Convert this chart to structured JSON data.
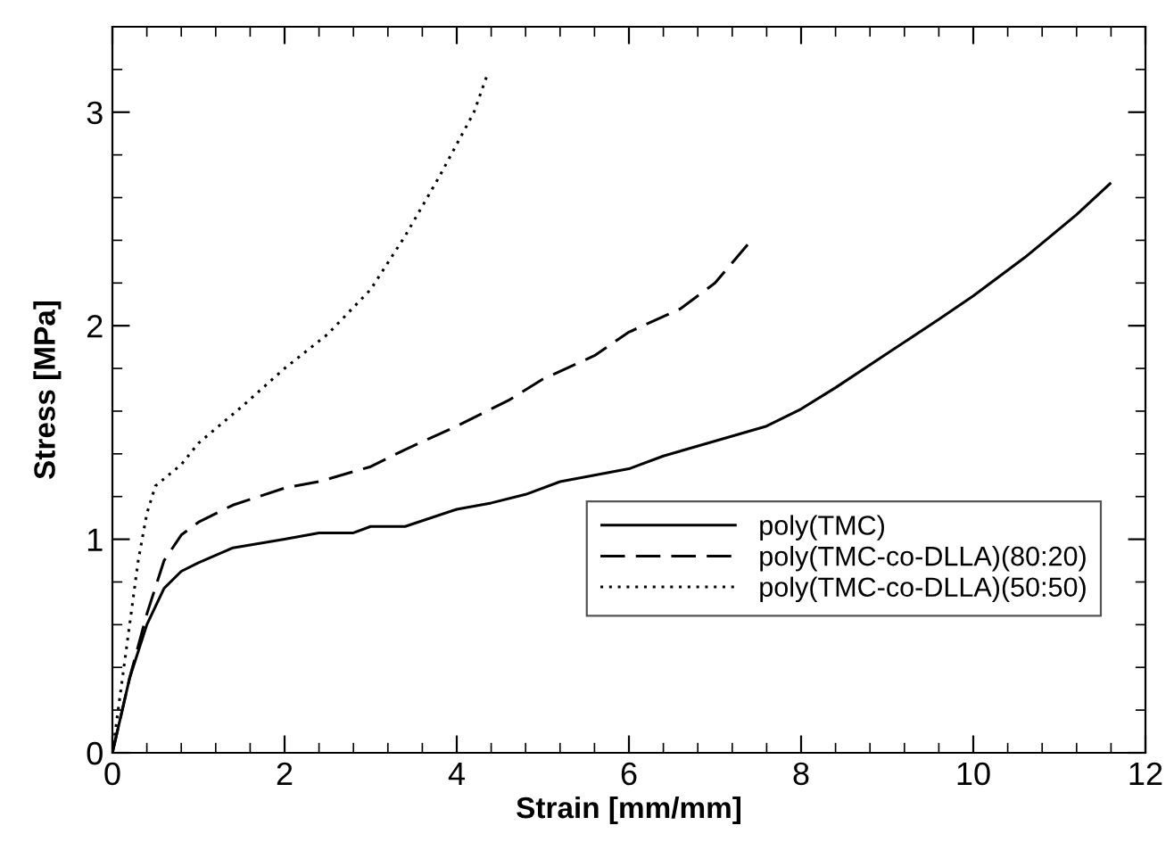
{
  "chart_data": {
    "type": "line",
    "xlabel": "Strain [mm/mm]",
    "ylabel": "Stress [MPa]",
    "xlim": [
      0,
      12
    ],
    "ylim": [
      0,
      3.4
    ],
    "xticks": [
      0,
      2,
      4,
      6,
      8,
      10,
      12
    ],
    "yticks": [
      0,
      1,
      2,
      3
    ],
    "grid": false,
    "legend": "bottom right",
    "marker": "none",
    "series": [
      {
        "name": "poly(TMC)",
        "color": "#000000",
        "line_style": "solid",
        "x": [
          0,
          0.2,
          0.4,
          0.6,
          0.8,
          1,
          1.4,
          2,
          2.4,
          2.8,
          3,
          3.4,
          4,
          4.4,
          4.8,
          5.2,
          5.6,
          6,
          6.4,
          7,
          7.6,
          8,
          8.4,
          9,
          9.6,
          10,
          10.6,
          11.2,
          11.6
        ],
        "values": [
          0,
          0.35,
          0.6,
          0.77,
          0.85,
          0.89,
          0.96,
          1.0,
          1.03,
          1.03,
          1.06,
          1.06,
          1.14,
          1.17,
          1.21,
          1.27,
          1.3,
          1.33,
          1.39,
          1.46,
          1.53,
          1.61,
          1.71,
          1.87,
          2.03,
          2.14,
          2.32,
          2.52,
          2.67
        ]
      },
      {
        "name": "poly(TMC-co-DLLA)(80:20)",
        "color": "#000000",
        "line_style": "dashed",
        "x": [
          0,
          0.2,
          0.4,
          0.6,
          0.8,
          1,
          1.4,
          2,
          2.4,
          3,
          3.4,
          4,
          4.6,
          5,
          5.6,
          6,
          6.6,
          7,
          7.4
        ],
        "values": [
          0,
          0.35,
          0.65,
          0.9,
          1.02,
          1.08,
          1.16,
          1.24,
          1.27,
          1.34,
          1.42,
          1.53,
          1.65,
          1.75,
          1.86,
          1.97,
          2.08,
          2.2,
          2.39
        ]
      },
      {
        "name": "poly(TMC-co-DLLA)(50:50)",
        "color": "#000000",
        "line_style": "dotted",
        "x": [
          0,
          0.1,
          0.2,
          0.3,
          0.4,
          0.5,
          0.8,
          1,
          1.5,
          2,
          2.5,
          3,
          3.4,
          3.8,
          4.2,
          4.35
        ],
        "values": [
          0,
          0.3,
          0.6,
          0.9,
          1.12,
          1.25,
          1.35,
          1.45,
          1.62,
          1.8,
          1.96,
          2.17,
          2.42,
          2.7,
          3.0,
          3.17
        ]
      }
    ]
  }
}
